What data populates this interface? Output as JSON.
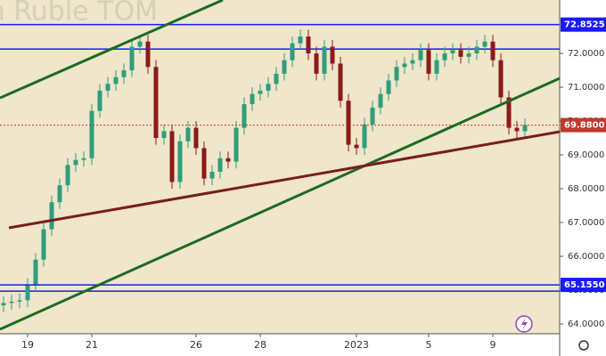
{
  "chart_data": {
    "type": "candlestick",
    "watermark": "ian Ruble TOM",
    "categories": [
      null,
      null,
      null,
      "19",
      null,
      null,
      null,
      null,
      null,
      null,
      null,
      "21",
      null,
      null,
      null,
      null,
      null,
      null,
      null,
      null,
      null,
      null,
      null,
      null,
      "26",
      null,
      null,
      null,
      null,
      null,
      null,
      null,
      "28",
      null,
      null,
      null,
      null,
      null,
      null,
      null,
      null,
      null,
      null,
      null,
      "2023",
      null,
      null,
      null,
      null,
      null,
      null,
      null,
      null,
      "5",
      null,
      null,
      null,
      null,
      null,
      null,
      null,
      "9",
      null,
      null,
      null,
      null
    ],
    "open": [
      64.55,
      64.62,
      64.66,
      64.7,
      65.15,
      65.9,
      66.8,
      67.6,
      68.1,
      68.7,
      68.85,
      68.9,
      70.3,
      70.9,
      71.1,
      71.3,
      71.5,
      72.2,
      72.35,
      71.6,
      69.5,
      69.7,
      68.2,
      69.4,
      69.8,
      69.2,
      68.3,
      68.5,
      68.9,
      68.8,
      69.8,
      70.5,
      70.8,
      70.9,
      71.1,
      71.4,
      71.8,
      72.3,
      72.5,
      72.0,
      71.4,
      72.2,
      71.7,
      70.6,
      69.3,
      69.2,
      69.9,
      70.4,
      70.8,
      71.2,
      71.6,
      71.7,
      71.8,
      72.1,
      71.4,
      71.8,
      72.0,
      72.1,
      71.9,
      72.0,
      72.2,
      72.35,
      71.8,
      70.7,
      69.8,
      69.7
    ],
    "high": [
      64.82,
      64.86,
      64.9,
      65.35,
      66.1,
      67.0,
      67.8,
      68.3,
      68.9,
      69.05,
      69.1,
      70.5,
      71.1,
      71.3,
      71.5,
      71.7,
      72.4,
      72.55,
      72.55,
      71.8,
      69.9,
      69.9,
      69.6,
      70.0,
      70.0,
      69.4,
      68.7,
      69.1,
      69.1,
      70.0,
      70.7,
      71.0,
      71.1,
      71.3,
      71.6,
      72.0,
      72.5,
      72.7,
      72.7,
      72.2,
      72.4,
      72.4,
      71.9,
      70.8,
      69.5,
      70.1,
      70.6,
      71.0,
      71.4,
      71.8,
      71.9,
      72.0,
      72.3,
      72.3,
      72.0,
      72.2,
      72.3,
      72.3,
      72.2,
      72.4,
      72.55,
      72.55,
      72.0,
      70.9,
      70.0,
      70.08
    ],
    "low": [
      64.35,
      64.42,
      64.46,
      64.5,
      64.95,
      65.7,
      66.6,
      67.4,
      67.9,
      68.5,
      68.65,
      68.7,
      70.1,
      70.7,
      70.9,
      71.1,
      71.3,
      72.0,
      71.4,
      69.3,
      69.3,
      68.0,
      68.0,
      69.2,
      69.0,
      68.1,
      68.1,
      68.3,
      68.6,
      68.6,
      69.6,
      70.3,
      70.6,
      70.7,
      70.9,
      71.2,
      71.6,
      72.1,
      71.8,
      71.2,
      71.2,
      71.5,
      70.4,
      69.1,
      69.0,
      69.0,
      69.7,
      70.2,
      70.6,
      71.0,
      71.4,
      71.5,
      71.6,
      71.2,
      71.2,
      71.6,
      71.8,
      71.7,
      71.7,
      71.8,
      72.0,
      71.6,
      70.5,
      69.6,
      69.5,
      69.5
    ],
    "close": [
      64.62,
      64.66,
      64.7,
      65.15,
      65.9,
      66.8,
      67.6,
      68.1,
      68.7,
      68.85,
      68.9,
      70.3,
      70.9,
      71.1,
      71.3,
      71.5,
      72.2,
      72.35,
      71.6,
      69.5,
      69.7,
      68.2,
      69.4,
      69.8,
      69.2,
      68.3,
      68.5,
      68.9,
      68.8,
      69.8,
      70.5,
      70.8,
      70.9,
      71.1,
      71.4,
      71.8,
      72.3,
      72.5,
      72.0,
      71.4,
      72.2,
      71.7,
      70.6,
      69.3,
      69.2,
      69.9,
      70.4,
      70.8,
      71.2,
      71.6,
      71.7,
      71.8,
      72.1,
      71.4,
      71.8,
      72.0,
      72.1,
      71.9,
      72.0,
      72.2,
      72.35,
      71.8,
      70.7,
      69.8,
      69.7,
      69.88
    ],
    "up_color": "#2e9e7c",
    "down_color": "#8b1a1a",
    "ylim": [
      63.71,
      73.58
    ],
    "yticks": [
      {
        "value": 64,
        "label": "64.0000"
      },
      {
        "value": 65,
        "label": "65.0000"
      },
      {
        "value": 66,
        "label": "66.0000"
      },
      {
        "value": 67,
        "label": "67.0000"
      },
      {
        "value": 68,
        "label": "68.0000"
      },
      {
        "value": 69,
        "label": "69.0000"
      },
      {
        "value": 70,
        "label": "70.0000"
      },
      {
        "value": 71,
        "label": "71.0000"
      },
      {
        "value": 72,
        "label": "72.0000"
      }
    ],
    "price_lines": [
      {
        "value": 72.8525,
        "label": "72.8525",
        "color": "#1a1aff"
      },
      {
        "value": 65.155,
        "label": "65.1550",
        "color": "#1a1aff"
      }
    ],
    "extra_lines": [
      72.13,
      64.97
    ],
    "last_price": {
      "value": 69.88,
      "label": "69.8800",
      "color": "#c0392b"
    }
  }
}
